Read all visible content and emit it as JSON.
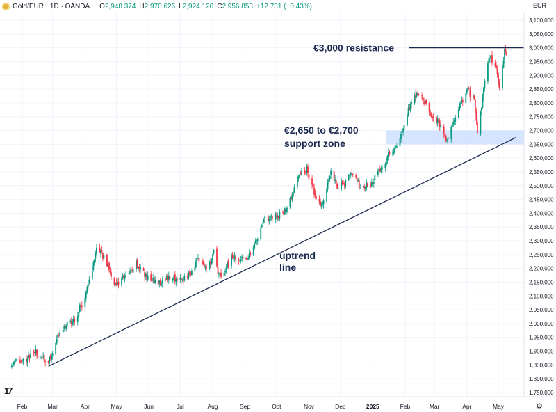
{
  "header": {
    "symbol": "Gold/EUR · 1D · OANDA",
    "icon": "gold-coin-icon",
    "open_label": "O",
    "open": "2,948.374",
    "high_label": "H",
    "high": "2,970.626",
    "low_label": "L",
    "low": "2,924.120",
    "close_label": "C",
    "close": "2,956.853",
    "change": "+12.731 (+0.43%)"
  },
  "currency": "EUR",
  "logo_text": "17",
  "settings_icon": "gear-icon",
  "colors": {
    "up": "#089981",
    "down": "#f23645",
    "annotation": "#1c2a4f",
    "zone": "#c7dcff",
    "grid": "#f0f3fa"
  },
  "chart_data": {
    "type": "candlestick",
    "ylim": [
      1750000,
      3100000
    ],
    "y_ticks": [
      "1,750,000",
      "1,800,000",
      "1,850,000",
      "1,900,000",
      "1,950,000",
      "2,000,000",
      "2,050,000",
      "2,100,000",
      "2,150,000",
      "2,200,000",
      "2,250,000",
      "2,300,000",
      "2,350,000",
      "2,400,000",
      "2,450,000",
      "2,500,000",
      "2,550,000",
      "2,600,000",
      "2,650,000",
      "2,700,000",
      "2,750,000",
      "2,800,000",
      "2,850,000",
      "2,900,000",
      "2,950,000",
      "3,000,000",
      "3,050,000",
      "3,100,000"
    ],
    "x_ticks": [
      "Feb",
      "Mar",
      "Apr",
      "May",
      "Jun",
      "Jul",
      "Aug",
      "Sep",
      "Oct",
      "Nov",
      "Dec",
      "2025",
      "Feb",
      "Mar",
      "Apr",
      "May"
    ],
    "x_ticks_bold": [
      "2025"
    ],
    "close_anchors": [
      {
        "date": "2024-01-20",
        "value": 1860000
      },
      {
        "date": "2024-02-01",
        "value": 1865000
      },
      {
        "date": "2024-02-14",
        "value": 1895000
      },
      {
        "date": "2024-02-26",
        "value": 1855000
      },
      {
        "date": "2024-03-08",
        "value": 1975000
      },
      {
        "date": "2024-03-21",
        "value": 2010000
      },
      {
        "date": "2024-03-29",
        "value": 2070000
      },
      {
        "date": "2024-04-05",
        "value": 2150000
      },
      {
        "date": "2024-04-12",
        "value": 2265000
      },
      {
        "date": "2024-04-19",
        "value": 2245000
      },
      {
        "date": "2024-04-30",
        "value": 2140000
      },
      {
        "date": "2024-05-10",
        "value": 2170000
      },
      {
        "date": "2024-05-20",
        "value": 2220000
      },
      {
        "date": "2024-05-30",
        "value": 2170000
      },
      {
        "date": "2024-06-10",
        "value": 2145000
      },
      {
        "date": "2024-06-20",
        "value": 2170000
      },
      {
        "date": "2024-07-01",
        "value": 2160000
      },
      {
        "date": "2024-07-10",
        "value": 2175000
      },
      {
        "date": "2024-07-18",
        "value": 2240000
      },
      {
        "date": "2024-07-26",
        "value": 2190000
      },
      {
        "date": "2024-08-02",
        "value": 2255000
      },
      {
        "date": "2024-08-07",
        "value": 2170000
      },
      {
        "date": "2024-08-20",
        "value": 2240000
      },
      {
        "date": "2024-09-02",
        "value": 2230000
      },
      {
        "date": "2024-09-12",
        "value": 2300000
      },
      {
        "date": "2024-09-20",
        "value": 2380000
      },
      {
        "date": "2024-10-01",
        "value": 2390000
      },
      {
        "date": "2024-10-10",
        "value": 2410000
      },
      {
        "date": "2024-10-22",
        "value": 2530000
      },
      {
        "date": "2024-10-30",
        "value": 2560000
      },
      {
        "date": "2024-11-06",
        "value": 2470000
      },
      {
        "date": "2024-11-14",
        "value": 2420000
      },
      {
        "date": "2024-11-22",
        "value": 2560000
      },
      {
        "date": "2024-11-28",
        "value": 2500000
      },
      {
        "date": "2024-12-06",
        "value": 2510000
      },
      {
        "date": "2024-12-12",
        "value": 2545000
      },
      {
        "date": "2024-12-20",
        "value": 2495000
      },
      {
        "date": "2024-12-31",
        "value": 2510000
      },
      {
        "date": "2025-01-08",
        "value": 2560000
      },
      {
        "date": "2025-01-16",
        "value": 2610000
      },
      {
        "date": "2025-01-24",
        "value": 2640000
      },
      {
        "date": "2025-02-03",
        "value": 2760000
      },
      {
        "date": "2025-02-11",
        "value": 2830000
      },
      {
        "date": "2025-02-18",
        "value": 2810000
      },
      {
        "date": "2025-02-26",
        "value": 2760000
      },
      {
        "date": "2025-03-06",
        "value": 2720000
      },
      {
        "date": "2025-03-13",
        "value": 2665000
      },
      {
        "date": "2025-03-20",
        "value": 2740000
      },
      {
        "date": "2025-04-01",
        "value": 2850000
      },
      {
        "date": "2025-04-08",
        "value": 2810000
      },
      {
        "date": "2025-04-11",
        "value": 2690000
      },
      {
        "date": "2025-04-18",
        "value": 2870000
      },
      {
        "date": "2025-04-22",
        "value": 2970000
      },
      {
        "date": "2025-04-28",
        "value": 2940000
      },
      {
        "date": "2025-05-02",
        "value": 2860000
      },
      {
        "date": "2025-05-07",
        "value": 2990000
      },
      {
        "date": "2025-05-10",
        "value": 2956853
      }
    ],
    "annotations": {
      "resistance": {
        "label": "€3,000 resistance",
        "value": 3000000
      },
      "support_zone": {
        "label_line1": "€2,650 to €2,700",
        "label_line2": "support zone",
        "low": 2650000,
        "high": 2700000,
        "from": "2025-01-14"
      },
      "uptrend_line": {
        "label_line1": "uptrend",
        "label_line2": "line",
        "start": {
          "date": "2024-02-26",
          "value": 1845000
        },
        "end": {
          "date": "2025-05-18",
          "value": 2675000
        }
      }
    }
  }
}
